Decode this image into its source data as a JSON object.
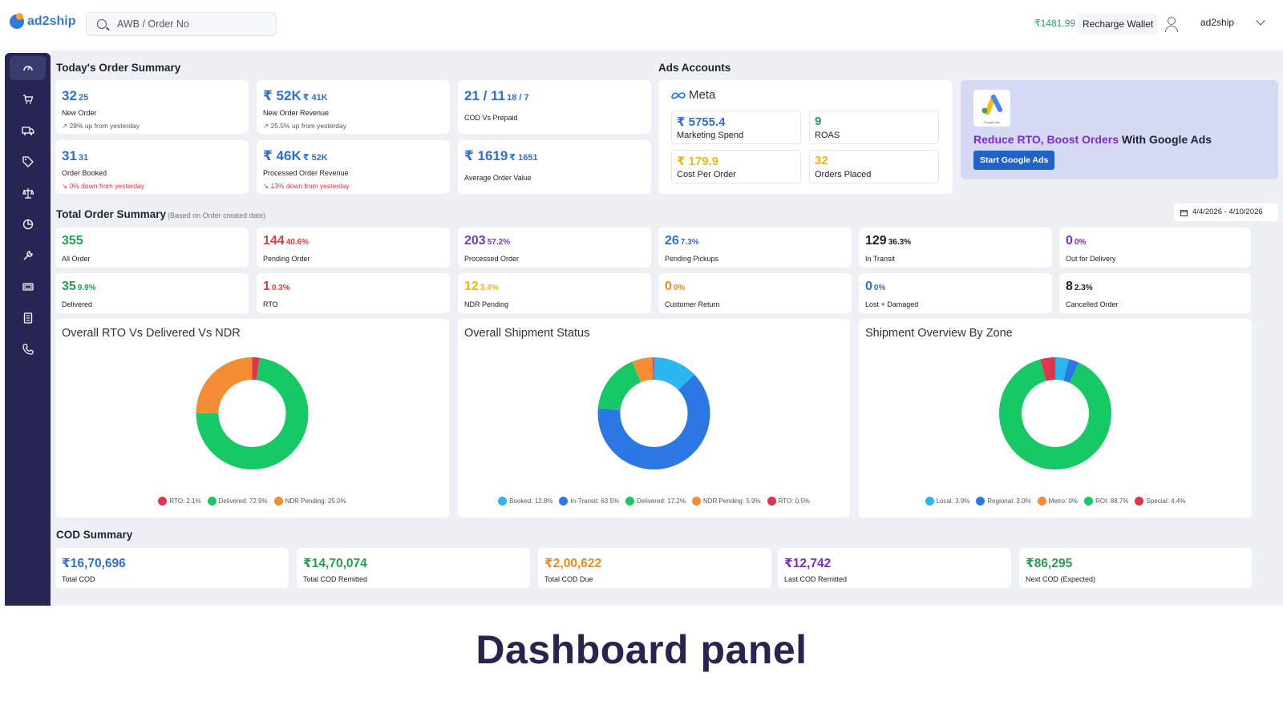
{
  "header": {
    "logo": "ad2ship",
    "search_placeholder": "AWB / Order No",
    "wallet_amount": "₹1481.99",
    "recharge_label": "Recharge Wallet",
    "username": "ad2ship"
  },
  "sidebar": {
    "items": [
      {
        "icon": "dashboard-icon"
      },
      {
        "icon": "cart-icon"
      },
      {
        "icon": "truck-icon"
      },
      {
        "icon": "tag-icon"
      },
      {
        "icon": "scale-icon"
      },
      {
        "icon": "pie-icon"
      },
      {
        "icon": "wrench-icon"
      },
      {
        "icon": "billing-icon"
      },
      {
        "icon": "document-icon"
      },
      {
        "icon": "phone-icon"
      }
    ]
  },
  "today": {
    "title": "Today's Order Summary",
    "new_order": {
      "value": "32",
      "sub": "25",
      "label": "New Order",
      "change": "28% up from yesterday"
    },
    "new_revenue": {
      "value": "₹ 52K",
      "sub": "₹ 41K",
      "label": "New Order Revenue",
      "change": "25.5% up from yesterday"
    },
    "cod_prepaid": {
      "value": "21 / 11",
      "sub": "18 / 7",
      "label": "COD Vs Prepaid"
    },
    "booked": {
      "value": "31",
      "sub": "31",
      "label": "Order Booked",
      "change": "0% down from yesterday"
    },
    "processed_revenue": {
      "value": "₹ 46K",
      "sub": "₹ 52K",
      "label": "Processed Order Revenue",
      "change": "13% down from yesterday"
    },
    "aov": {
      "value": "₹ 1619",
      "sub": "₹ 1651",
      "label": "Average Order Value"
    }
  },
  "ads": {
    "title": "Ads Accounts",
    "meta_label": "Meta",
    "spend": {
      "value": "₹ 5755.4",
      "label": "Marketing Spend"
    },
    "roas": {
      "value": "9",
      "label": "ROAS"
    },
    "cpo": {
      "value": "₹ 179.9",
      "label": "Cost Per Order"
    },
    "orders": {
      "value": "32",
      "label": "Orders Placed"
    },
    "promo_highlight": "Reduce RTO, Boost Orders",
    "promo_rest": " With Google Ads",
    "promo_button": "Start Google Ads",
    "google_ads_caption": "Google Ads"
  },
  "total": {
    "title": "Total Order Summary",
    "note": "(Based on Order created date)",
    "date_range": "4/4/2026 - 4/10/2026",
    "cards": [
      {
        "value": "355",
        "pct": "",
        "label": "All Order"
      },
      {
        "value": "144",
        "pct": "40.6%",
        "label": "Pending Order"
      },
      {
        "value": "203",
        "pct": "57.2%",
        "label": "Processed Order"
      },
      {
        "value": "26",
        "pct": "7.3%",
        "label": "Pending Pickups"
      },
      {
        "value": "129",
        "pct": "36.3%",
        "label": "In Transit"
      },
      {
        "value": "0",
        "pct": "0%",
        "label": "Out for Delivery"
      },
      {
        "value": "35",
        "pct": "9.9%",
        "label": "Delivered"
      },
      {
        "value": "1",
        "pct": "0.3%",
        "label": "RTO"
      },
      {
        "value": "12",
        "pct": "3.4%",
        "label": "NDR Pending"
      },
      {
        "value": "0",
        "pct": "0%",
        "label": "Customer Return"
      },
      {
        "value": "0",
        "pct": "0%",
        "label": "Lost + Damaged"
      },
      {
        "value": "8",
        "pct": "2.3%",
        "label": "Cancelled Order"
      }
    ]
  },
  "charts": [
    {
      "title": "Overall RTO Vs Delivered Vs NDR",
      "slices": [
        {
          "label": "RTO: 2.1%",
          "value": 2.1,
          "color": "#e0344f"
        },
        {
          "label": "Delivered: 72.9%",
          "value": 72.9,
          "color": "#17c964"
        },
        {
          "label": "NDR Pending: 25.0%",
          "value": 25.0,
          "color": "#f48c34"
        }
      ]
    },
    {
      "title": "Overall Shipment Status",
      "slices": [
        {
          "label": "Booked: 12.8%",
          "value": 12.8,
          "color": "#2ab7ef"
        },
        {
          "label": "In-Transit: 63.5%",
          "value": 63.5,
          "color": "#2b78e4"
        },
        {
          "label": "Delivered: 17.2%",
          "value": 17.2,
          "color": "#17c964"
        },
        {
          "label": "NDR Pending: 5.9%",
          "value": 5.9,
          "color": "#f48c34"
        },
        {
          "label": "RTO: 0.5%",
          "value": 0.5,
          "color": "#e0344f"
        }
      ]
    },
    {
      "title": "Shipment Overview By Zone",
      "slices": [
        {
          "label": "Local: 3.9%",
          "value": 3.9,
          "color": "#2ab7ef"
        },
        {
          "label": "Regional: 3.0%",
          "value": 3.0,
          "color": "#2b78e4"
        },
        {
          "label": "Metro: 0%",
          "value": 0,
          "color": "#f48c34"
        },
        {
          "label": "ROI: 88.7%",
          "value": 88.7,
          "color": "#17c964"
        },
        {
          "label": "Special: 4.4%",
          "value": 4.4,
          "color": "#e0344f"
        }
      ]
    }
  ],
  "cod": {
    "title": "COD Summary",
    "cards": [
      {
        "value": "₹16,70,696",
        "label": "Total COD"
      },
      {
        "value": "₹14,70,074",
        "label": "Total COD Remitted"
      },
      {
        "value": "₹2,00,622",
        "label": "Total COD Due"
      },
      {
        "value": "₹12,742",
        "label": "Last COD Remitted"
      },
      {
        "value": "₹86,295",
        "label": "Next COD (Expected)"
      }
    ]
  },
  "caption": "Dashboard panel"
}
